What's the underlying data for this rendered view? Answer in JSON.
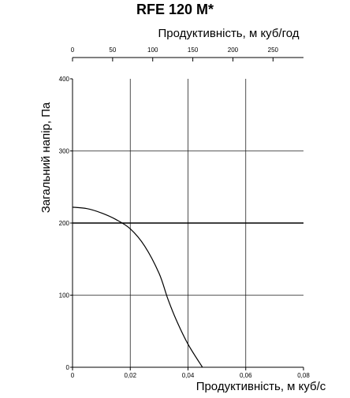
{
  "chart_data": {
    "type": "line",
    "title": "RFE 120 M*",
    "xlabel": "Продуктивність, м куб/с",
    "x2label": "Продуктивність, м куб/год",
    "ylabel": "Загальний напір, Па",
    "xlim": [
      0,
      0.08
    ],
    "ylim": [
      0,
      400
    ],
    "x2lim": [
      0,
      288
    ],
    "xticks": [
      "0",
      "0,02",
      "0,04",
      "0,06",
      "0,08"
    ],
    "x2ticks": [
      "0",
      "50",
      "100",
      "150",
      "200",
      "250"
    ],
    "yticks": [
      "0",
      "100",
      "200",
      "300",
      "400"
    ],
    "grid": true,
    "x": [
      0,
      0.005,
      0.01,
      0.015,
      0.02,
      0.025,
      0.03,
      0.033,
      0.036,
      0.04,
      0.045
    ],
    "series": [
      {
        "values": [
          222,
          220,
          214,
          205,
          192,
          168,
          130,
          95,
          65,
          32,
          0
        ]
      }
    ],
    "reference_line_y": 200
  }
}
